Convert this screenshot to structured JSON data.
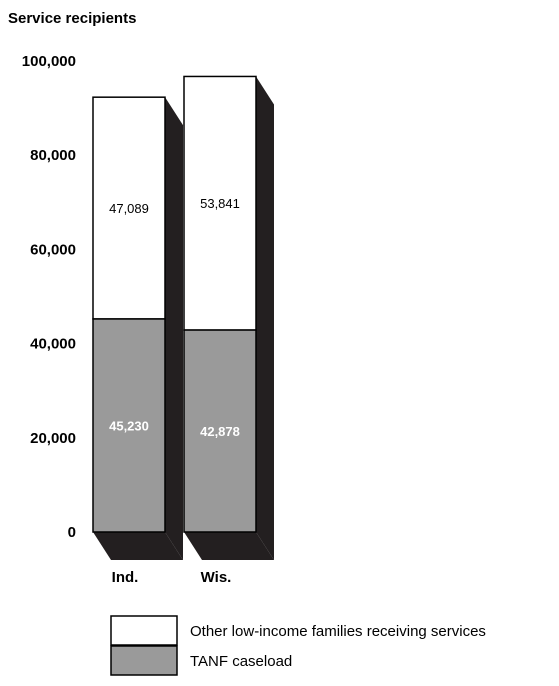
{
  "chart_data": {
    "type": "bar",
    "stacked": true,
    "y_axis_label": "Service recipients",
    "ylim": [
      0,
      100000
    ],
    "y_ticks": [
      "0",
      "20,000",
      "40,000",
      "60,000",
      "80,000",
      "100,000"
    ],
    "y_tick_values": [
      0,
      20000,
      40000,
      60000,
      80000,
      100000
    ],
    "categories": [
      "Ind.",
      "Wis."
    ],
    "series": [
      {
        "name": "TANF caseload",
        "values": [
          45230,
          42878
        ],
        "labels": [
          "45,230",
          "42,878"
        ],
        "color": "#9a9a9a"
      },
      {
        "name": "Other low-income families receiving services",
        "values": [
          47089,
          53841
        ],
        "labels": [
          "47,089",
          "53,841"
        ],
        "color": "#ffffff"
      }
    ],
    "legend": [
      "Other low-income families receiving services",
      "TANF caseload"
    ],
    "legend_placement": "bottom",
    "side_color": "#231f20"
  }
}
